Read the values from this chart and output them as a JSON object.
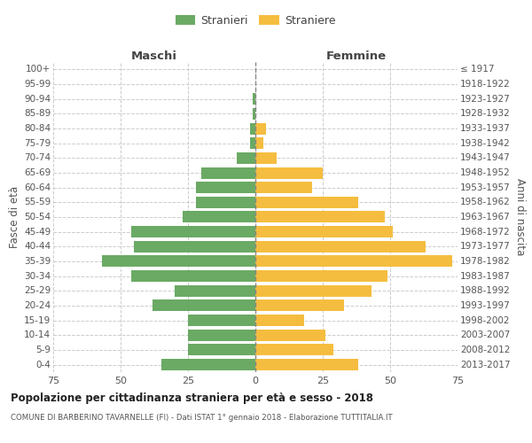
{
  "age_groups": [
    "100+",
    "95-99",
    "90-94",
    "85-89",
    "80-84",
    "75-79",
    "70-74",
    "65-69",
    "60-64",
    "55-59",
    "50-54",
    "45-49",
    "40-44",
    "35-39",
    "30-34",
    "25-29",
    "20-24",
    "15-19",
    "10-14",
    "5-9",
    "0-4"
  ],
  "birth_years": [
    "≤ 1917",
    "1918-1922",
    "1923-1927",
    "1928-1932",
    "1933-1937",
    "1938-1942",
    "1943-1947",
    "1948-1952",
    "1953-1957",
    "1958-1962",
    "1963-1967",
    "1968-1972",
    "1973-1977",
    "1978-1982",
    "1983-1987",
    "1988-1992",
    "1993-1997",
    "1998-2002",
    "2003-2007",
    "2008-2012",
    "2013-2017"
  ],
  "males": [
    0,
    0,
    1,
    1,
    2,
    2,
    7,
    20,
    22,
    22,
    27,
    46,
    45,
    57,
    46,
    30,
    38,
    25,
    25,
    25,
    35
  ],
  "females": [
    0,
    0,
    0,
    0,
    4,
    3,
    8,
    25,
    21,
    38,
    48,
    51,
    63,
    73,
    49,
    43,
    33,
    18,
    26,
    29,
    38
  ],
  "male_color": "#6aaa64",
  "female_color": "#f5bd3f",
  "background_color": "#ffffff",
  "grid_color": "#cccccc",
  "title_main": "Popolazione per cittadinanza straniera per età e sesso - 2018",
  "title_sub": "COMUNE DI BARBERINO TAVARNELLE (FI) - Dati ISTAT 1° gennaio 2018 - Elaborazione TUTTITALIA.IT",
  "ylabel_left": "Fasce di età",
  "ylabel_right": "Anni di nascita",
  "legend_male": "Stranieri",
  "legend_female": "Straniere",
  "header_left": "Maschi",
  "header_right": "Femmine",
  "xlim": 75
}
